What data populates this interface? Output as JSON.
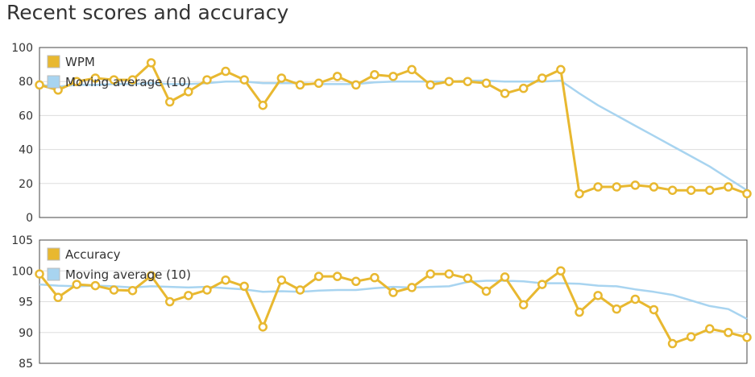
{
  "page": {
    "title": "Recent scores and accuracy"
  },
  "colors": {
    "primary": "#e8b830",
    "moving_average": "#a8d4f0",
    "grid": "#dddddd",
    "frame": "#444444"
  },
  "chart_data": [
    {
      "type": "line",
      "ylim": [
        0,
        100
      ],
      "yticks": [
        "0",
        "20",
        "40",
        "60",
        "80",
        "100"
      ],
      "grid": true,
      "legend_position": "top-left",
      "series": [
        {
          "name": "WPM",
          "color": "#e8b830",
          "markers": true,
          "values": [
            78,
            75,
            80,
            82,
            81,
            81,
            91,
            68,
            74,
            81,
            86,
            81,
            66,
            82,
            78,
            79,
            83,
            78,
            84,
            83,
            87,
            78,
            80,
            80,
            79,
            73,
            76,
            82,
            87,
            14,
            18,
            18,
            19,
            18,
            16,
            16,
            16,
            18,
            14
          ]
        },
        {
          "name": "Moving average (10)",
          "color": "#a8d4f0",
          "markers": false,
          "values": [
            78,
            77,
            78,
            78,
            78.5,
            78.5,
            79,
            78.5,
            78.5,
            79,
            80,
            80,
            79,
            79,
            79,
            78.5,
            78.5,
            78.5,
            79.5,
            80,
            80,
            80,
            80,
            80.5,
            80.5,
            80,
            80,
            80,
            80.5,
            73,
            66,
            60,
            54,
            48,
            42,
            36,
            30,
            23,
            16
          ]
        }
      ]
    },
    {
      "type": "line",
      "ylim": [
        85,
        105
      ],
      "yticks": [
        "85",
        "90",
        "95",
        "100",
        "105"
      ],
      "grid": true,
      "legend_position": "top-left",
      "series": [
        {
          "name": "Accuracy",
          "color": "#e8b830",
          "markers": true,
          "values": [
            99.5,
            95.7,
            97.8,
            97.6,
            96.9,
            96.8,
            99.2,
            95,
            96,
            96.9,
            98.5,
            97.5,
            90.9,
            98.5,
            96.9,
            99.1,
            99.1,
            98.3,
            98.9,
            96.5,
            97.3,
            99.5,
            99.5,
            98.8,
            96.7,
            99,
            94.5,
            97.8,
            100,
            93.3,
            96,
            93.8,
            95.4,
            93.7,
            88.2,
            89.3,
            90.6,
            90,
            89.2
          ]
        },
        {
          "name": "Moving average (10)",
          "color": "#a8d4f0",
          "markers": false,
          "values": [
            97.8,
            97.6,
            97.5,
            97.6,
            97.5,
            97.3,
            97.5,
            97.4,
            97.3,
            97.4,
            97.2,
            97,
            96.6,
            96.7,
            96.6,
            96.8,
            96.9,
            96.9,
            97.2,
            97.4,
            97.3,
            97.4,
            97.5,
            98.2,
            98.4,
            98.4,
            98.3,
            98,
            98,
            97.9,
            97.6,
            97.5,
            97,
            96.6,
            96.1,
            95.2,
            94.3,
            93.8,
            92.2
          ]
        }
      ]
    }
  ]
}
